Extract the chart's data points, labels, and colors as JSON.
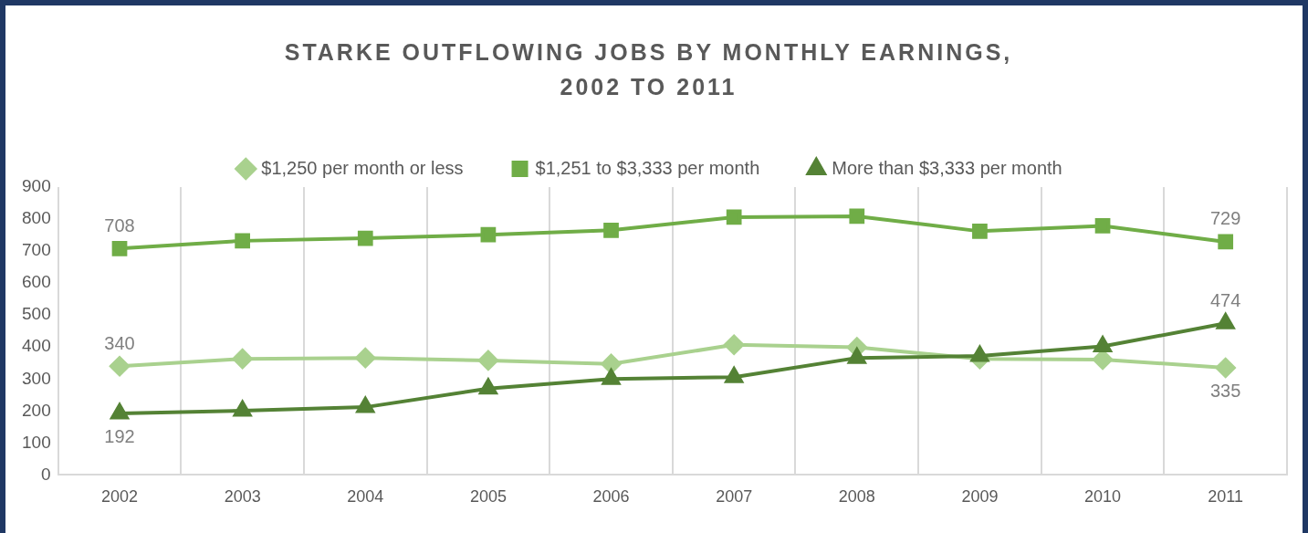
{
  "chart_data": {
    "type": "line",
    "title": "STARKE OUTFLOWING JOBS BY MONTHLY EARNINGS,\n2002 TO 2011",
    "categories": [
      "2002",
      "2003",
      "2004",
      "2005",
      "2006",
      "2007",
      "2008",
      "2009",
      "2010",
      "2011"
    ],
    "series": [
      {
        "name": "$1,250 per month or less",
        "color": "#a9d18e",
        "marker": "diamond",
        "values": [
          340,
          363,
          366,
          358,
          347,
          407,
          399,
          363,
          361,
          335
        ],
        "value_labels": [
          "340",
          null,
          null,
          null,
          null,
          null,
          null,
          null,
          null,
          "335"
        ]
      },
      {
        "name": "$1,251 to $3,333 per month",
        "color": "#70ad47",
        "marker": "square",
        "values": [
          708,
          732,
          740,
          751,
          765,
          806,
          809,
          762,
          779,
          729
        ],
        "value_labels": [
          "708",
          null,
          null,
          null,
          null,
          null,
          null,
          null,
          null,
          "729"
        ]
      },
      {
        "name": "More than $3,333 per month",
        "color": "#548235",
        "marker": "triangle",
        "values": [
          192,
          201,
          212,
          270,
          300,
          306,
          366,
          372,
          402,
          474
        ],
        "value_labels": [
          "192",
          null,
          null,
          null,
          null,
          null,
          null,
          null,
          null,
          "474"
        ]
      }
    ],
    "ylim": [
      0,
      900
    ],
    "yticks": [
      0,
      100,
      200,
      300,
      400,
      500,
      600,
      700,
      800,
      900
    ],
    "grid": "x",
    "legend": "top",
    "line_style": "solid"
  }
}
